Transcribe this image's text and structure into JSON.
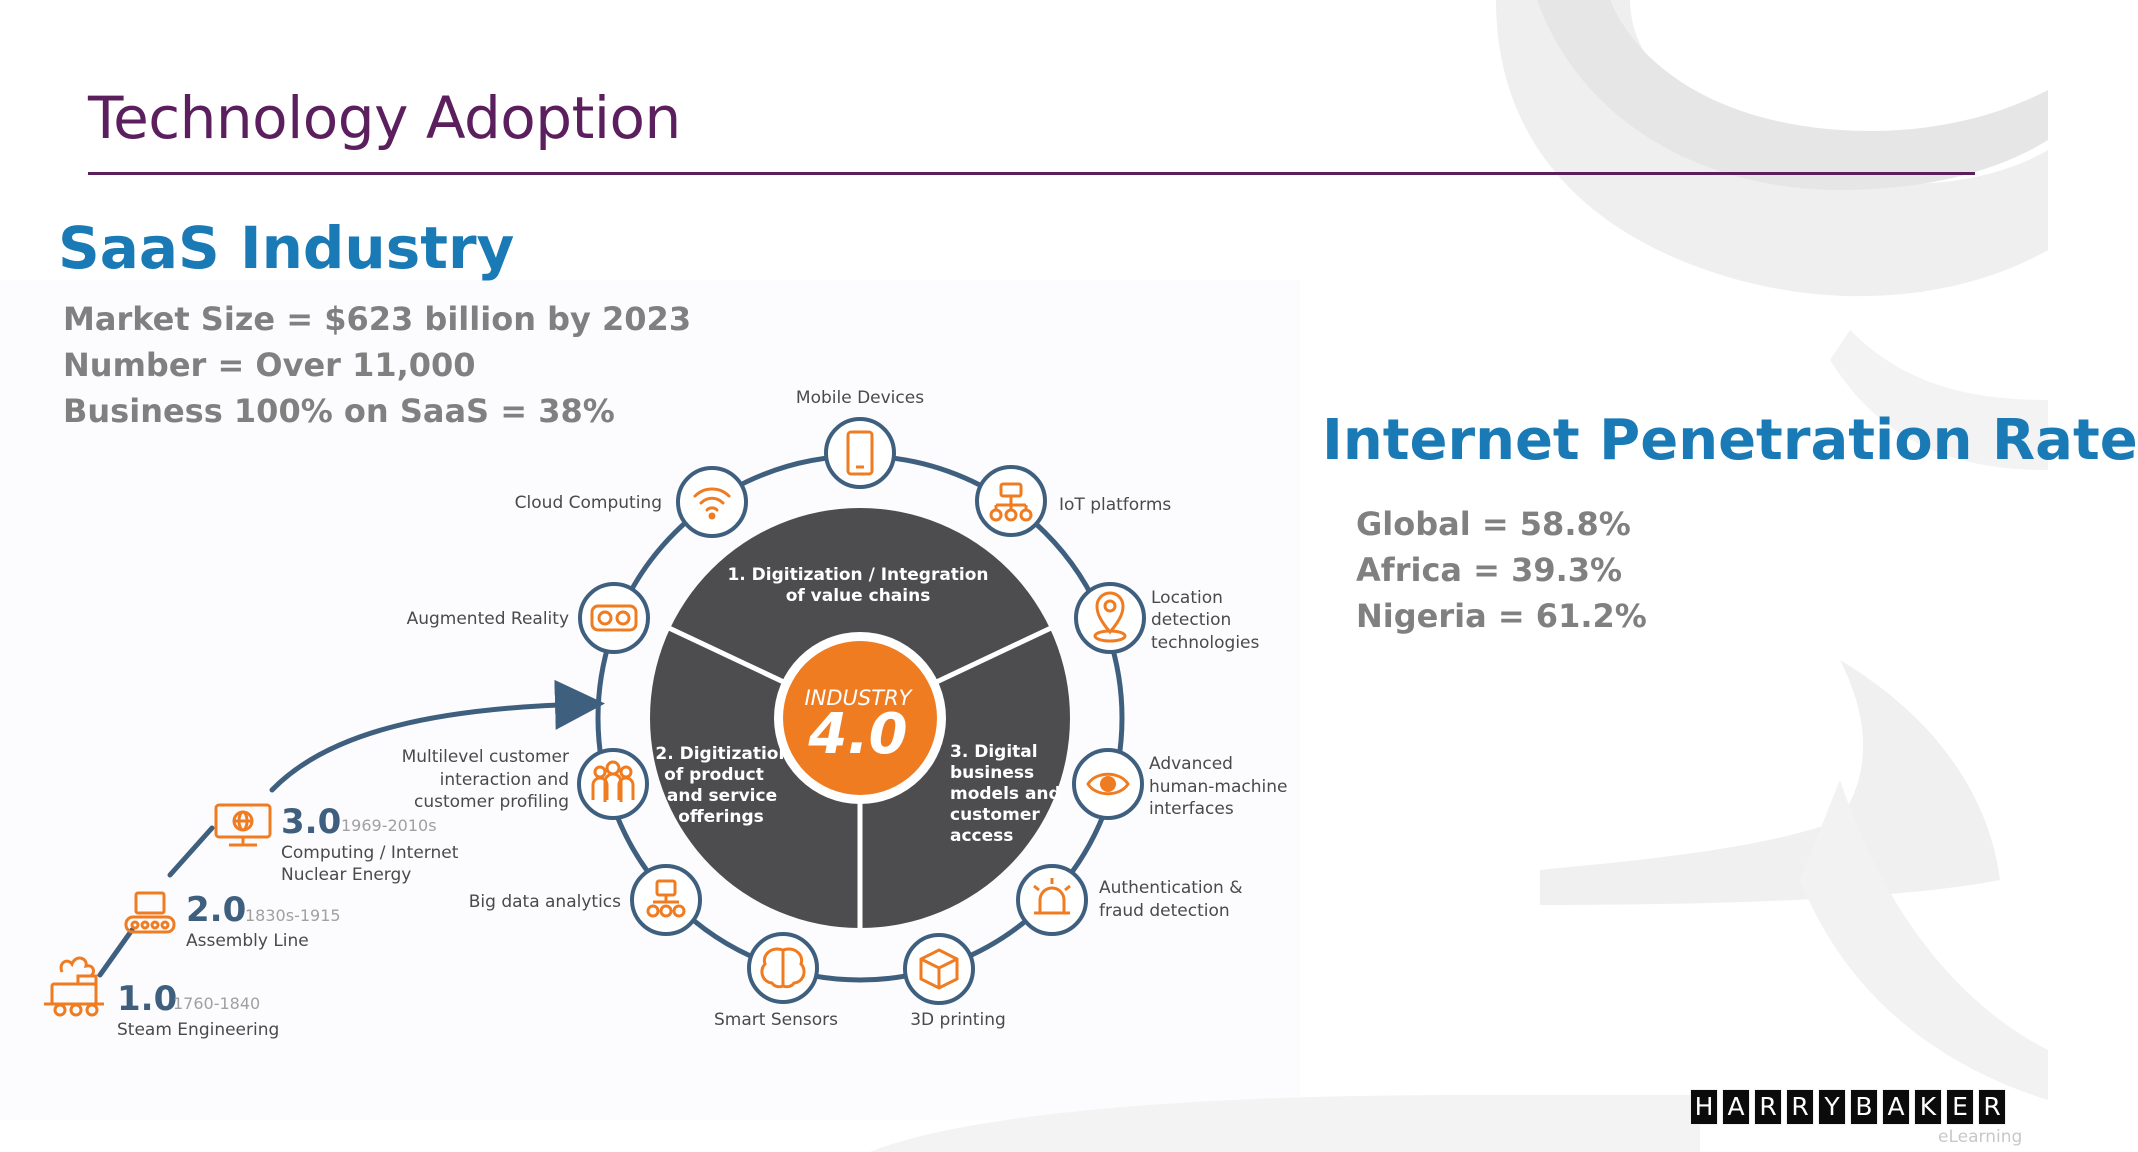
{
  "slide": {
    "title": "Technology Adoption",
    "colors": {
      "title": "#5b1f5e",
      "heading": "#1a7ab5",
      "stat_text": "#808080",
      "diagram_ring": "#3f5f7f",
      "diagram_core": "#4d4d4f",
      "accent_orange": "#f07c22"
    }
  },
  "saas": {
    "heading": "SaaS Industry",
    "stats": [
      "Market Size = $623 billion by 2023",
      "Number = Over 11,000",
      "Business 100% on SaaS = 38%"
    ]
  },
  "internet": {
    "heading": "Internet Penetration Rate",
    "stats": [
      "Global = 58.8%",
      "Africa = 39.3%",
      "Nigeria = 61.2%"
    ]
  },
  "diagram": {
    "core": {
      "line1": "INDUSTRY",
      "line2": "4.0"
    },
    "segments": [
      {
        "lines": [
          "1. Digitization / Integration",
          "of value chains"
        ]
      },
      {
        "lines": [
          "2. Digitization",
          "of product",
          "and service",
          "offerings"
        ]
      },
      {
        "lines": [
          "3. Digital",
          "business",
          "models and",
          "customer",
          "access"
        ]
      }
    ],
    "nodes": [
      {
        "icon": "smartphone-icon",
        "lines": [
          "Mobile Devices"
        ]
      },
      {
        "icon": "network-icon",
        "lines": [
          "IoT platforms"
        ]
      },
      {
        "icon": "location-pin-icon",
        "lines": [
          "Location",
          "detection",
          "technologies"
        ]
      },
      {
        "icon": "eye-icon",
        "lines": [
          "Advanced",
          "human-machine",
          "interfaces"
        ]
      },
      {
        "icon": "alarm-icon",
        "lines": [
          "Authentication &",
          "fraud detection"
        ]
      },
      {
        "icon": "cube-icon",
        "lines": [
          "3D printing"
        ]
      },
      {
        "icon": "brain-icon",
        "lines": [
          "Smart Sensors"
        ]
      },
      {
        "icon": "analytics-icon",
        "lines": [
          "Big data analytics"
        ]
      },
      {
        "icon": "people-icon",
        "lines": [
          "Multilevel customer",
          "interaction and",
          "customer profiling"
        ]
      },
      {
        "icon": "vr-headset-icon",
        "lines": [
          "Augmented Reality"
        ]
      },
      {
        "icon": "wifi-icon",
        "lines": [
          "Cloud Computing"
        ]
      }
    ],
    "eras": [
      {
        "icon": "globe-monitor-icon",
        "number": "3.0",
        "years": "1969-2010s",
        "lines": [
          "Computing / Internet",
          "Nuclear Energy"
        ]
      },
      {
        "icon": "conveyor-icon",
        "number": "2.0",
        "years": "1830s-1915",
        "lines": [
          "Assembly Line"
        ]
      },
      {
        "icon": "steam-train-icon",
        "number": "1.0",
        "years": "1760-1840",
        "lines": [
          "Steam Engineering"
        ]
      }
    ]
  },
  "logo": {
    "letters": [
      "H",
      "A",
      "R",
      "R",
      "Y",
      "B",
      "A",
      "K",
      "E",
      "R"
    ],
    "subtitle": "eLearning"
  }
}
